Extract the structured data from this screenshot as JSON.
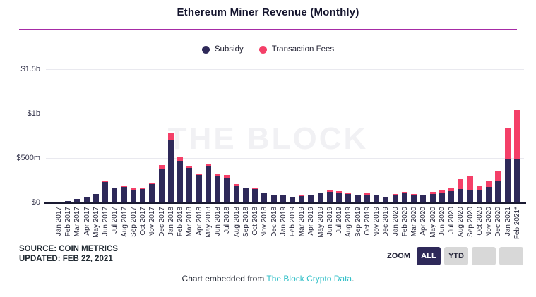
{
  "header": {
    "title": "Ethereum Miner Revenue (Monthly)"
  },
  "watermark": "THE BLOCK",
  "colors": {
    "subsidy": "#2e2959",
    "fees": "#f43f68",
    "top_rule": "#a62ba6",
    "link": "#2fbfc7",
    "grid": "#e9e9ef",
    "axis": "#1a1a32"
  },
  "chart_data": {
    "type": "bar",
    "stacked": true,
    "title": "Ethereum Miner Revenue (Monthly)",
    "unit": "USD (m = millions, b = billions)",
    "legend_position": "top",
    "grid": true,
    "ylim": [
      0,
      1500
    ],
    "yticks": {
      "values": [
        0,
        500,
        1000,
        1500
      ],
      "labels": [
        "$0",
        "$500m",
        "$1b",
        "$1.5b"
      ]
    },
    "categories": [
      "Jan 2017",
      "Feb 2017",
      "Mar 2017",
      "Apr 2017",
      "May 2017",
      "Jun 2017",
      "Jul 2017",
      "Aug 2017",
      "Sep 2017",
      "Oct 2017",
      "Nov 2017",
      "Dec 2017",
      "Jan 2018",
      "Feb 2018",
      "Mar 2018",
      "Apr 2018",
      "May 2018",
      "Jun 2018",
      "Jul 2018",
      "Aug 2018",
      "Sep 2018",
      "Oct 2018",
      "Nov 2018",
      "Dec 2018",
      "Jan 2019",
      "Feb 2019",
      "Mar 2019",
      "Apr 2019",
      "May 2019",
      "Jun 2019",
      "Jul 2019",
      "Aug 2019",
      "Sep 2019",
      "Oct 2019",
      "Nov 2019",
      "Dec 2019",
      "Jan 2020",
      "Feb 2020",
      "Mar 2020",
      "Apr 2020",
      "May 2020",
      "Jun 2020",
      "Jul 2020",
      "Aug 2020",
      "Sep 2020",
      "Oct 2020",
      "Nov 2020",
      "Dec 2020",
      "Jan 2021",
      "Feb 2021*"
    ],
    "series": [
      {
        "name": "Subsidy",
        "color": "#2e2959",
        "values": [
          10,
          13,
          38,
          60,
          95,
          230,
          155,
          175,
          145,
          152,
          205,
          370,
          700,
          472,
          385,
          312,
          405,
          305,
          270,
          190,
          158,
          148,
          112,
          78,
          83,
          60,
          72,
          85,
          104,
          118,
          112,
          98,
          83,
          90,
          78,
          60,
          88,
          108,
          88,
          82,
          99,
          113,
          130,
          151,
          138,
          138,
          175,
          239,
          486,
          486
        ]
      },
      {
        "name": "Transaction Fees",
        "color": "#f43f68",
        "values": [
          1,
          1,
          2,
          3,
          4,
          8,
          8,
          16,
          10,
          10,
          8,
          48,
          75,
          32,
          21,
          10,
          32,
          21,
          37,
          18,
          8,
          7,
          5,
          4,
          4,
          4,
          8,
          5,
          7,
          14,
          13,
          8,
          7,
          13,
          7,
          4,
          7,
          9,
          10,
          8,
          20,
          30,
          40,
          114,
          167,
          56,
          69,
          117,
          345,
          557
        ]
      }
    ]
  },
  "footer": {
    "source_line1": "SOURCE: COIN METRICS",
    "source_line2": "UPDATED: FEB 22, 2021",
    "zoom_label": "ZOOM",
    "zoom_buttons": [
      {
        "label": "ALL",
        "selected": true
      },
      {
        "label": "YTD",
        "selected": false
      },
      {
        "label": "",
        "selected": false
      },
      {
        "label": "",
        "selected": false
      }
    ],
    "embed_prefix": "Chart embedded from ",
    "embed_link": "The Block Crypto Data",
    "embed_suffix": "."
  }
}
